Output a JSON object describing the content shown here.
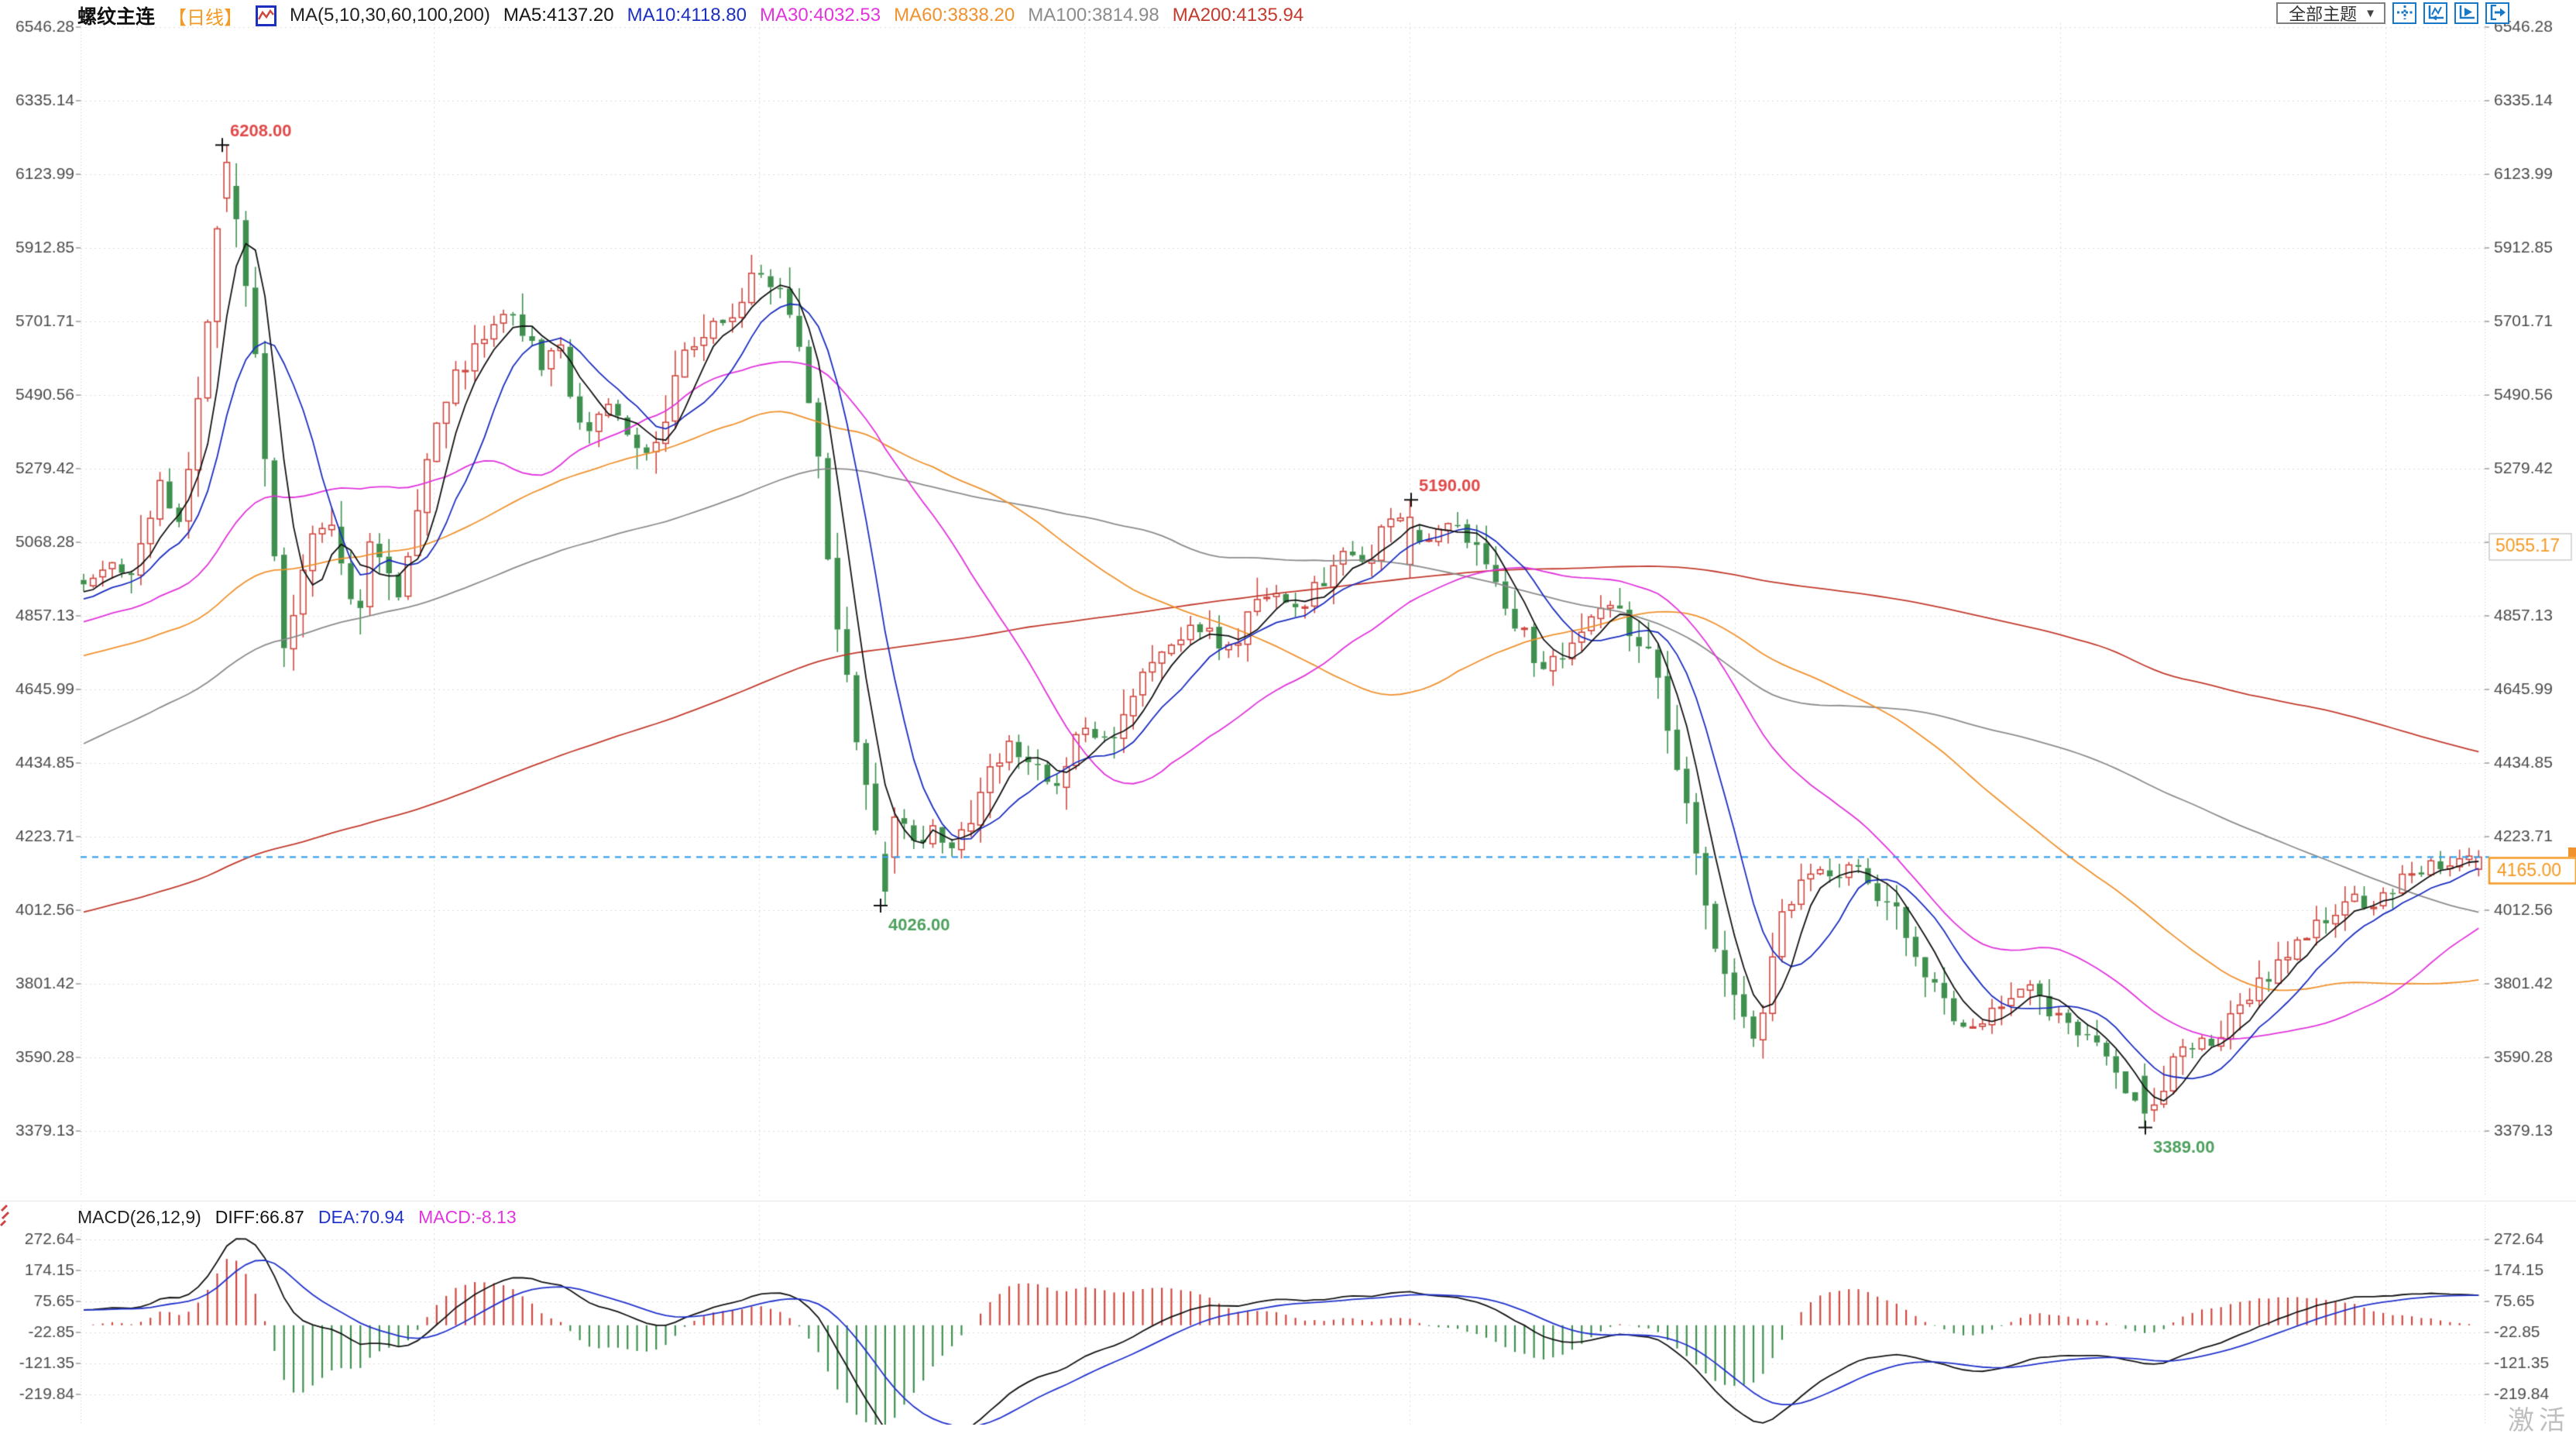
{
  "header": {
    "symbol": "螺纹主连",
    "period": "【日线】",
    "ma_formula": "MA(5,10,30,60,100,200)",
    "ma5": "MA5:4137.20",
    "ma10": "MA10:4118.80",
    "ma30": "MA30:4032.53",
    "ma60": "MA60:3838.20",
    "ma100": "MA100:3814.98",
    "ma200": "MA200:4135.94"
  },
  "toolbar": {
    "theme_label": "全部主题",
    "dropdown_arrow": "▼",
    "icon_names": [
      "crosshair-tool",
      "zoom-restore-tool",
      "play-scale-tool",
      "pop-out-tool"
    ]
  },
  "macd_header": {
    "formula": "MACD(26,12,9)",
    "diff": "DIFF:66.87",
    "dea": "DEA:70.94",
    "macd": "MACD:-8.13"
  },
  "watermark": "激活",
  "colors": {
    "up": "#cf4840",
    "down": "#3f8f4f",
    "ma5": "#141414",
    "ma10": "#1c2fbf",
    "ma30": "#e135dc",
    "ma60": "#f0922e",
    "ma100": "#8c8c8c",
    "ma200": "#c23b2e",
    "diff_line": "#141414",
    "dea_line": "#2233cc",
    "hist_pos": "#cf4840",
    "hist_neg": "#3f8f4f",
    "price_line": "#3aa0e8",
    "accent_orange": "#f59a23",
    "axis_text": "#4a4a4a",
    "grid": "#dcdcdc",
    "border_dots": "#c8c8c8",
    "annotation_high": "#e04a4a",
    "annotation_low": "#4ea05e",
    "toolbar_blue": "#1878c8",
    "header_text": "#222222",
    "symbol_text": "#111111"
  },
  "chart_data": {
    "type": "candlestick",
    "title": "螺纹主连 日线 (rebar continuous, daily)",
    "legend": [
      "MA5",
      "MA10",
      "MA30",
      "MA60",
      "MA100",
      "MA200"
    ],
    "price_axis": {
      "ticks": [
        6546.28,
        6335.14,
        6123.99,
        5912.85,
        5701.71,
        5490.56,
        5279.42,
        5068.28,
        4857.13,
        4645.99,
        4434.85,
        4223.71,
        4012.56,
        3801.42,
        3590.28,
        3379.13
      ],
      "tick_step": 211.142,
      "grid": true,
      "sides": "both"
    },
    "macd_axis": {
      "ticks": [
        272.64,
        174.15,
        75.65,
        -22.85,
        -121.35,
        -219.84
      ],
      "tick_step": 98.495,
      "grid": true,
      "sides": "both"
    },
    "moving_averages": [
      {
        "name": "MA5",
        "period": 5,
        "value": 4137.2,
        "color": "#141414"
      },
      {
        "name": "MA10",
        "period": 10,
        "value": 4118.8,
        "color": "#1c2fbf"
      },
      {
        "name": "MA30",
        "period": 30,
        "value": 4032.53,
        "color": "#e135dc"
      },
      {
        "name": "MA60",
        "period": 60,
        "value": 3838.2,
        "color": "#f0922e"
      },
      {
        "name": "MA100",
        "period": 100,
        "value": 3814.98,
        "color": "#8c8c8c"
      },
      {
        "name": "MA200",
        "period": 200,
        "value": 4135.94,
        "color": "#c23b2e"
      }
    ],
    "macd": {
      "fast": 12,
      "slow": 26,
      "signal": 9,
      "diff": 66.87,
      "dea": 70.94,
      "macd": -8.13
    },
    "annotations": [
      {
        "label": "6208.00",
        "price": 6208.0,
        "px": 287,
        "kind": "high"
      },
      {
        "label": "5190.00",
        "price": 5190.0,
        "px": 1822,
        "kind": "high"
      },
      {
        "label": "4026.00",
        "price": 4026.0,
        "px": 1137,
        "kind": "low"
      },
      {
        "label": "3389.00",
        "price": 3389.0,
        "px": 2770,
        "kind": "low"
      }
    ],
    "price_line": {
      "label": "4165.00",
      "value": 4165.0
    },
    "right_axis_marker": {
      "label": "5055.17",
      "value": 5055.17
    },
    "series_anchors": [
      [
        108,
        4930
      ],
      [
        140,
        5030
      ],
      [
        165,
        4970
      ],
      [
        190,
        5100
      ],
      [
        210,
        5250
      ],
      [
        228,
        5120
      ],
      [
        250,
        5350
      ],
      [
        270,
        5750
      ],
      [
        287,
        6100
      ],
      [
        300,
        6050
      ],
      [
        318,
        5800
      ],
      [
        335,
        5500
      ],
      [
        352,
        5050
      ],
      [
        368,
        4780
      ],
      [
        388,
        4950
      ],
      [
        405,
        5100
      ],
      [
        425,
        5140
      ],
      [
        445,
        4990
      ],
      [
        462,
        4870
      ],
      [
        478,
        5080
      ],
      [
        495,
        4990
      ],
      [
        515,
        4900
      ],
      [
        535,
        5150
      ],
      [
        558,
        5380
      ],
      [
        580,
        5500
      ],
      [
        600,
        5580
      ],
      [
        622,
        5650
      ],
      [
        645,
        5720
      ],
      [
        665,
        5740
      ],
      [
        685,
        5620
      ],
      [
        705,
        5560
      ],
      [
        722,
        5660
      ],
      [
        740,
        5480
      ],
      [
        758,
        5370
      ],
      [
        778,
        5480
      ],
      [
        798,
        5450
      ],
      [
        818,
        5360
      ],
      [
        838,
        5310
      ],
      [
        858,
        5420
      ],
      [
        878,
        5650
      ],
      [
        898,
        5620
      ],
      [
        918,
        5720
      ],
      [
        938,
        5680
      ],
      [
        958,
        5780
      ],
      [
        980,
        5850
      ],
      [
        1000,
        5800
      ],
      [
        1022,
        5720
      ],
      [
        1040,
        5580
      ],
      [
        1055,
        5320
      ],
      [
        1072,
        5000
      ],
      [
        1090,
        4720
      ],
      [
        1110,
        4480
      ],
      [
        1128,
        4260
      ],
      [
        1143,
        4160
      ],
      [
        1158,
        4290
      ],
      [
        1172,
        4250
      ],
      [
        1188,
        4200
      ],
      [
        1205,
        4260
      ],
      [
        1225,
        4190
      ],
      [
        1245,
        4230
      ],
      [
        1265,
        4340
      ],
      [
        1285,
        4440
      ],
      [
        1305,
        4500
      ],
      [
        1325,
        4450
      ],
      [
        1345,
        4400
      ],
      [
        1362,
        4350
      ],
      [
        1382,
        4480
      ],
      [
        1402,
        4550
      ],
      [
        1422,
        4500
      ],
      [
        1442,
        4540
      ],
      [
        1462,
        4640
      ],
      [
        1482,
        4700
      ],
      [
        1502,
        4740
      ],
      [
        1522,
        4790
      ],
      [
        1542,
        4840
      ],
      [
        1562,
        4800
      ],
      [
        1582,
        4750
      ],
      [
        1602,
        4800
      ],
      [
        1622,
        4890
      ],
      [
        1642,
        4940
      ],
      [
        1662,
        4900
      ],
      [
        1682,
        4860
      ],
      [
        1702,
        4940
      ],
      [
        1722,
        5000
      ],
      [
        1742,
        5040
      ],
      [
        1762,
        5000
      ],
      [
        1782,
        5080
      ],
      [
        1805,
        5140
      ],
      [
        1822,
        5120
      ],
      [
        1840,
        5060
      ],
      [
        1858,
        5100
      ],
      [
        1878,
        5140
      ],
      [
        1895,
        5090
      ],
      [
        1915,
        5000
      ],
      [
        1935,
        4950
      ],
      [
        1955,
        4860
      ],
      [
        1975,
        4760
      ],
      [
        1995,
        4700
      ],
      [
        2015,
        4740
      ],
      [
        2035,
        4790
      ],
      [
        2055,
        4840
      ],
      [
        2075,
        4890
      ],
      [
        2095,
        4850
      ],
      [
        2115,
        4790
      ],
      [
        2135,
        4700
      ],
      [
        2155,
        4520
      ],
      [
        2175,
        4310
      ],
      [
        2195,
        4110
      ],
      [
        2215,
        3920
      ],
      [
        2235,
        3770
      ],
      [
        2255,
        3660
      ],
      [
        2272,
        3630
      ],
      [
        2288,
        3880
      ],
      [
        2308,
        4040
      ],
      [
        2328,
        4090
      ],
      [
        2348,
        4140
      ],
      [
        2368,
        4100
      ],
      [
        2388,
        4150
      ],
      [
        2408,
        4100
      ],
      [
        2428,
        4050
      ],
      [
        2448,
        4000
      ],
      [
        2468,
        3900
      ],
      [
        2488,
        3810
      ],
      [
        2508,
        3750
      ],
      [
        2528,
        3700
      ],
      [
        2548,
        3680
      ],
      [
        2568,
        3705
      ],
      [
        2588,
        3750
      ],
      [
        2608,
        3800
      ],
      [
        2628,
        3775
      ],
      [
        2648,
        3720
      ],
      [
        2668,
        3680
      ],
      [
        2688,
        3650
      ],
      [
        2708,
        3620
      ],
      [
        2728,
        3580
      ],
      [
        2748,
        3505
      ],
      [
        2768,
        3430
      ],
      [
        2784,
        3460
      ],
      [
        2800,
        3550
      ],
      [
        2820,
        3600
      ],
      [
        2840,
        3650
      ],
      [
        2858,
        3625
      ],
      [
        2878,
        3680
      ],
      [
        2898,
        3750
      ],
      [
        2918,
        3800
      ],
      [
        2938,
        3850
      ],
      [
        2958,
        3900
      ],
      [
        2978,
        3945
      ],
      [
        2998,
        3975
      ],
      [
        3018,
        4000
      ],
      [
        3038,
        4050
      ],
      [
        3058,
        4020
      ],
      [
        3078,
        4060
      ],
      [
        3098,
        4100
      ],
      [
        3118,
        4120
      ],
      [
        3138,
        4150
      ],
      [
        3158,
        4135
      ],
      [
        3180,
        4150
      ],
      [
        3200,
        4165
      ]
    ],
    "synthesis": {
      "count": 252,
      "pre_count": 220,
      "seed": 11,
      "pitch": 12.32,
      "candle_width": 7.4,
      "noise": 24,
      "last_close": 4165.0
    }
  }
}
